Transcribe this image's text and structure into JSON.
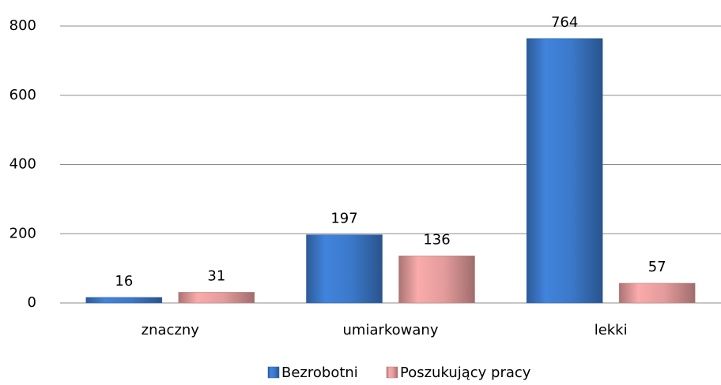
{
  "chart_data": {
    "type": "bar",
    "categories": [
      "znaczny",
      "umiarkowany",
      "lekki"
    ],
    "series": [
      {
        "name": "Bezrobotni",
        "color": "#3b78c9",
        "values": [
          16,
          197,
          764
        ]
      },
      {
        "name": "Poszukujący pracy",
        "color": "#e39b9b",
        "values": [
          31,
          136,
          57
        ]
      }
    ],
    "ylim": [
      0,
      800
    ],
    "yticks": [
      0,
      200,
      400,
      600,
      800
    ],
    "grid": true,
    "legend": "bottom"
  }
}
